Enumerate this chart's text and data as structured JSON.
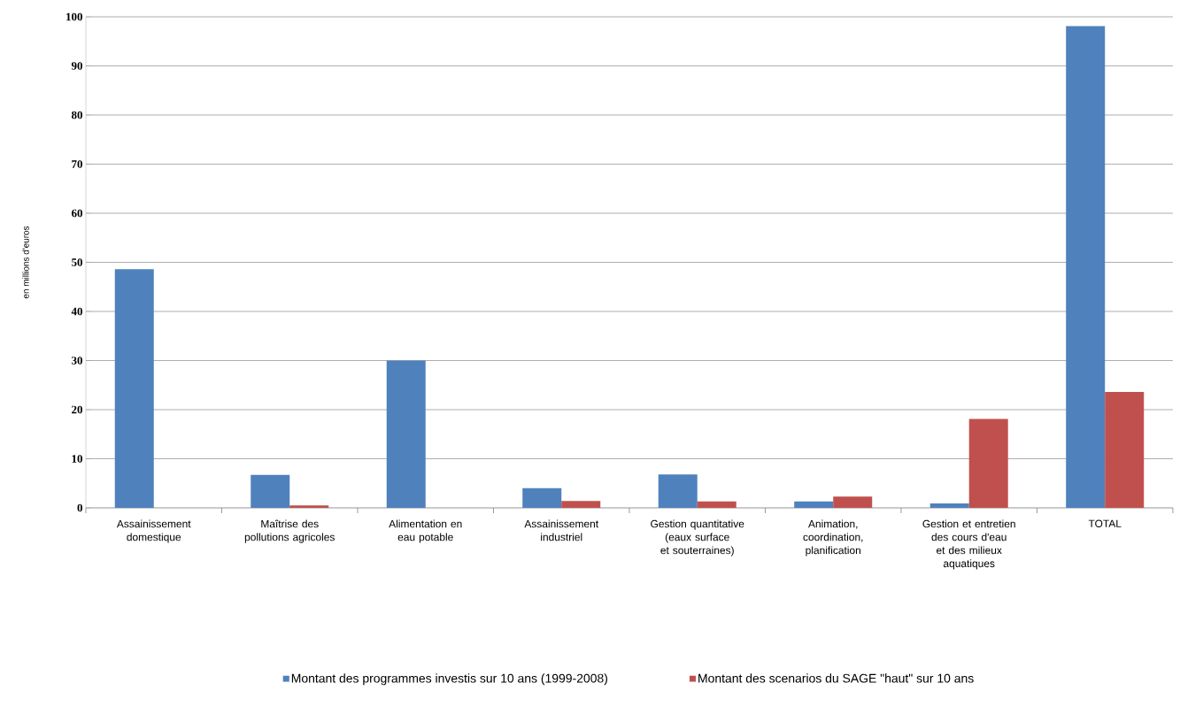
{
  "chart_data": {
    "type": "bar",
    "ylabel": "en millions d'euros",
    "categories": [
      "Assainissement domestique",
      "Maîtrise des pollutions agricoles",
      "Alimentation en eau potable",
      "Assainissement industriel",
      "Gestion quantitative (eaux surface et souterraines)",
      "Animation, coordination, planification",
      "Gestion et entretien des cours d'eau et des milieux aquatiques",
      "TOTAL"
    ],
    "series": [
      {
        "name": "Montant des programmes investis sur 10 ans (1999-2008)",
        "color": "#4f81bd",
        "values": [
          48.6,
          6.7,
          30,
          4.0,
          6.8,
          1.3,
          0.9,
          98.1
        ]
      },
      {
        "name": "Montant des scenarios du SAGE \"haut\" sur 10 ans",
        "color": "#c0504d",
        "values": [
          0,
          0.5,
          0,
          1.4,
          1.3,
          2.3,
          18.1,
          23.6
        ]
      }
    ],
    "ylim": [
      0,
      100
    ],
    "yticks": [
      0,
      10,
      20,
      30,
      40,
      50,
      60,
      70,
      80,
      90,
      100
    ],
    "grid": "y",
    "legend": "bottom"
  }
}
